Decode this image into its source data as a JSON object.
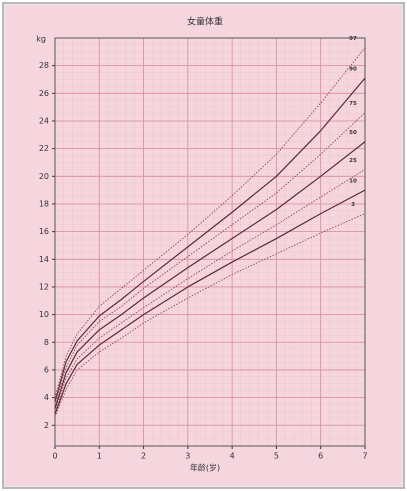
{
  "chart_data": {
    "type": "line",
    "title": "女童体重",
    "y_unit": "kg",
    "x_label": "年龄(岁)",
    "x": [
      0,
      0.25,
      0.5,
      1,
      1.5,
      2,
      3,
      4,
      5,
      6,
      7
    ],
    "xlim": [
      0,
      7
    ],
    "xticks": [
      0,
      1,
      2,
      3,
      4,
      5,
      6,
      7
    ],
    "ylim": [
      0.5,
      30
    ],
    "yticks": [
      2,
      4,
      6,
      8,
      10,
      12,
      14,
      16,
      18,
      20,
      22,
      24,
      26,
      28
    ],
    "grid": true,
    "series": [
      {
        "name": "97",
        "color": "#8a4a5a",
        "dashed": true,
        "values": [
          4.0,
          7.0,
          8.6,
          10.6,
          11.9,
          13.2,
          15.8,
          18.6,
          21.6,
          25.3,
          29.3
        ]
      },
      {
        "name": "90",
        "color": "#5a2a35",
        "dashed": false,
        "values": [
          3.7,
          6.6,
          8.1,
          9.9,
          11.1,
          12.4,
          14.9,
          17.4,
          20.0,
          23.3,
          27.1
        ]
      },
      {
        "name": "75",
        "color": "#8a4a5a",
        "dashed": true,
        "values": [
          3.5,
          6.2,
          7.8,
          9.5,
          10.6,
          11.9,
          14.2,
          16.5,
          18.8,
          21.6,
          24.6
        ]
      },
      {
        "name": "50",
        "color": "#5a2a35",
        "dashed": false,
        "values": [
          3.2,
          5.8,
          7.3,
          8.9,
          10.0,
          11.2,
          13.4,
          15.5,
          17.6,
          20.0,
          22.5
        ]
      },
      {
        "name": "25",
        "color": "#8a4a5a",
        "dashed": true,
        "values": [
          3.0,
          5.4,
          6.8,
          8.3,
          9.4,
          10.5,
          12.6,
          14.6,
          16.5,
          18.5,
          20.5
        ]
      },
      {
        "name": "10",
        "color": "#5a2a35",
        "dashed": false,
        "values": [
          2.8,
          5.0,
          6.4,
          7.8,
          8.9,
          10.0,
          12.0,
          13.8,
          15.5,
          17.3,
          19.0
        ]
      },
      {
        "name": "3",
        "color": "#8a4a5a",
        "dashed": true,
        "values": [
          2.6,
          4.6,
          6.0,
          7.3,
          8.3,
          9.4,
          11.2,
          12.9,
          14.4,
          15.9,
          17.3
        ]
      }
    ]
  }
}
